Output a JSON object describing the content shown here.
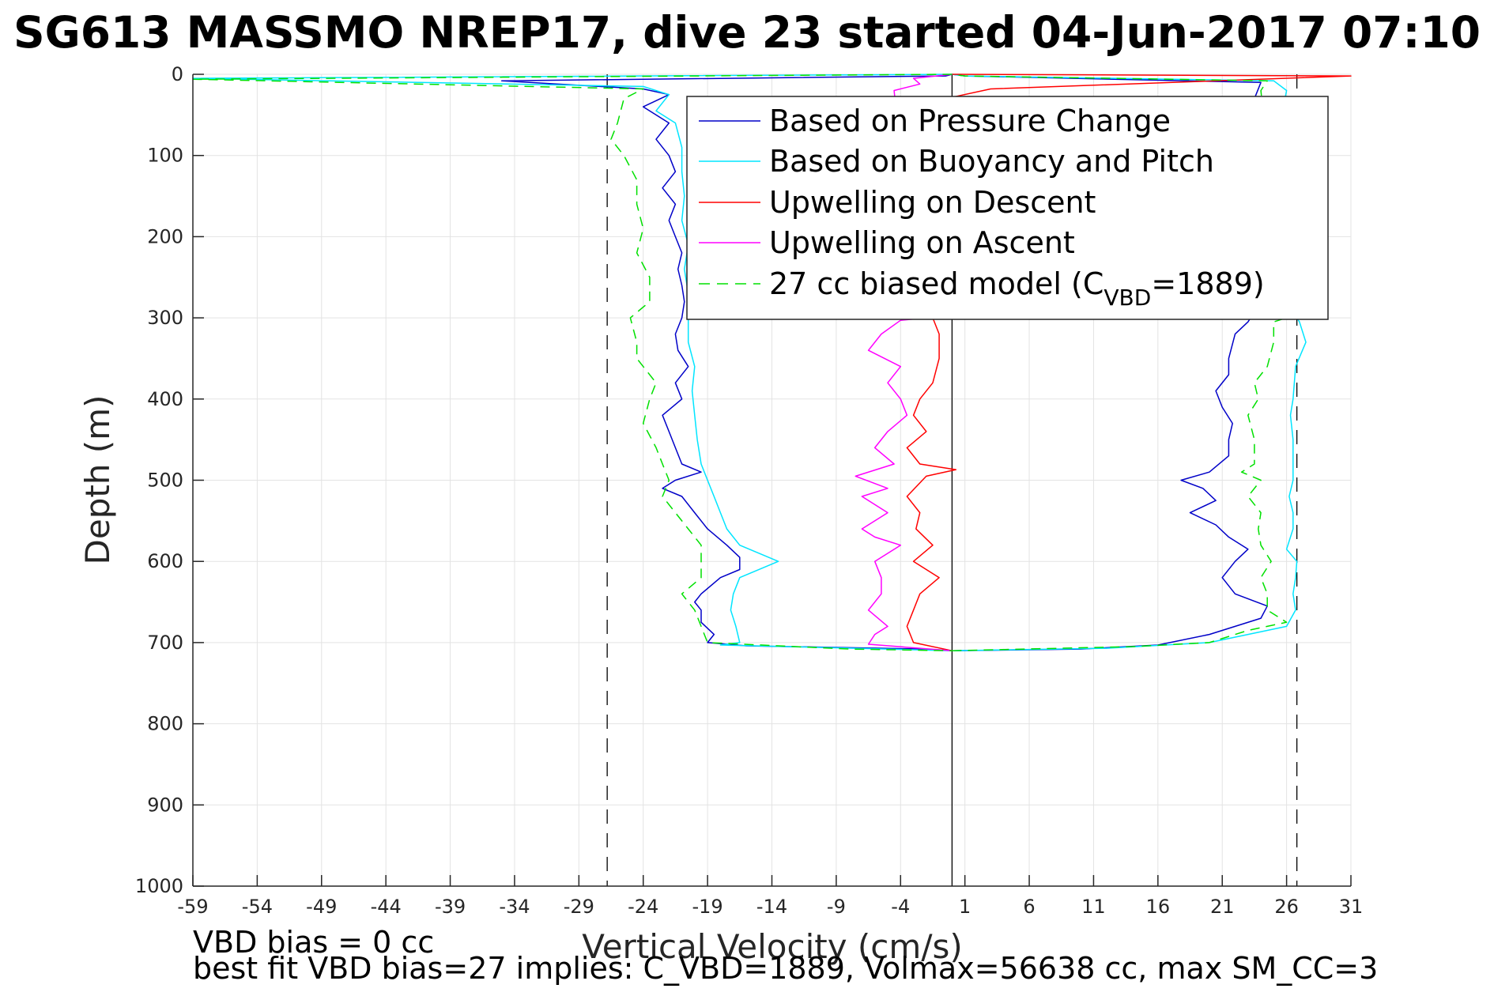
{
  "chart_data": {
    "type": "line",
    "title": "SG613 MASSMO NREP17, dive 23 started 04-Jun-2017 07:10",
    "xlabel": "Vertical Velocity (cm/s)",
    "ylabel": "Depth (m)",
    "xlim": [
      -59,
      31
    ],
    "ylim": [
      0,
      1000
    ],
    "y_reversed": true,
    "grid": true,
    "xticks": [
      "-59",
      "-54",
      "-49",
      "-44",
      "-39",
      "-34",
      "-29",
      "-24",
      "-19",
      "-14",
      "-9",
      "-4",
      "1",
      "6",
      "11",
      "16",
      "21",
      "26",
      "31"
    ],
    "yticks": [
      "0",
      "100",
      "200",
      "300",
      "400",
      "500",
      "600",
      "700",
      "800",
      "900",
      "1000"
    ],
    "legend_position": "top-right",
    "legend": [
      {
        "text": "Based on Pressure Change",
        "color": "#0000c8",
        "dash": "solid"
      },
      {
        "text": "Based on Buoyancy and Pitch",
        "color": "#00e5ff",
        "dash": "solid"
      },
      {
        "text": "Upwelling on Descent",
        "color": "#ff0000",
        "dash": "solid"
      },
      {
        "text": "Upwelling on Ascent",
        "color": "#ff00ff",
        "dash": "solid"
      },
      {
        "text_prefix": "27 cc biased model (C",
        "text_sub": "VBD",
        "text_suffix": "=1889)",
        "color": "#00e000",
        "dash": "dashed"
      }
    ],
    "reference_lines": {
      "zero_velocity": 0,
      "dashed_bounds": [
        -26.8,
        26.8
      ]
    },
    "series": [
      {
        "name": "Based on Pressure Change",
        "color": "#0000c8",
        "descent": [
          [
            0,
            0
          ],
          [
            -0.5,
            2
          ],
          [
            -35,
            8
          ],
          [
            -24,
            18
          ],
          [
            -22,
            25
          ],
          [
            -24,
            40
          ],
          [
            -22,
            60
          ],
          [
            -23,
            80
          ],
          [
            -22,
            100
          ],
          [
            -21.5,
            120
          ],
          [
            -22.5,
            140
          ],
          [
            -21.5,
            160
          ],
          [
            -22,
            180
          ],
          [
            -21.5,
            200
          ],
          [
            -21,
            220
          ],
          [
            -21.3,
            240
          ],
          [
            -21,
            260
          ],
          [
            -20.8,
            280
          ],
          [
            -21,
            300
          ],
          [
            -21.5,
            320
          ],
          [
            -21.3,
            340
          ],
          [
            -20.5,
            360
          ],
          [
            -21.5,
            380
          ],
          [
            -21,
            400
          ],
          [
            -22.5,
            420
          ],
          [
            -22,
            440
          ],
          [
            -21.5,
            460
          ],
          [
            -21,
            480
          ],
          [
            -19.5,
            490
          ],
          [
            -21.5,
            500
          ],
          [
            -22.5,
            510
          ],
          [
            -21,
            520
          ],
          [
            -20,
            540
          ],
          [
            -19,
            560
          ],
          [
            -17.5,
            580
          ],
          [
            -16.5,
            595
          ],
          [
            -16.5,
            610
          ],
          [
            -18,
            620
          ],
          [
            -19.5,
            640
          ],
          [
            -20,
            650
          ],
          [
            -19.5,
            660
          ],
          [
            -19.5,
            675
          ],
          [
            -18.5,
            690
          ],
          [
            -19,
            700
          ],
          [
            -16,
            704
          ],
          [
            -2,
            708
          ],
          [
            0,
            710
          ]
        ],
        "ascent": [
          [
            0,
            710
          ],
          [
            10,
            708
          ],
          [
            16,
            703
          ],
          [
            20,
            690
          ],
          [
            24,
            670
          ],
          [
            24.5,
            655
          ],
          [
            22,
            640
          ],
          [
            21,
            620
          ],
          [
            22,
            600
          ],
          [
            23,
            585
          ],
          [
            21.5,
            570
          ],
          [
            20.5,
            555
          ],
          [
            18.5,
            540
          ],
          [
            20.5,
            525
          ],
          [
            19.5,
            510
          ],
          [
            17.8,
            500
          ],
          [
            20,
            490
          ],
          [
            21.5,
            470
          ],
          [
            21.5,
            450
          ],
          [
            21.8,
            430
          ],
          [
            21,
            410
          ],
          [
            20.5,
            390
          ],
          [
            21.5,
            370
          ],
          [
            21.5,
            350
          ],
          [
            22,
            320
          ],
          [
            23,
            305
          ],
          [
            24,
            280
          ],
          [
            24,
            250
          ],
          [
            24,
            220
          ],
          [
            24,
            150
          ],
          [
            24.5,
            60
          ],
          [
            23.5,
            30
          ],
          [
            24,
            10
          ],
          [
            1,
            2
          ],
          [
            0,
            0
          ]
        ]
      },
      {
        "name": "Based on Buoyancy and Pitch",
        "color": "#00e5ff",
        "descent": [
          [
            0,
            0
          ],
          [
            -59,
            5
          ],
          [
            -24,
            15
          ],
          [
            -22,
            25
          ],
          [
            -23,
            45
          ],
          [
            -21.5,
            60
          ],
          [
            -21,
            90
          ],
          [
            -21,
            120
          ],
          [
            -20.8,
            150
          ],
          [
            -21,
            180
          ],
          [
            -20.5,
            210
          ],
          [
            -20.8,
            240
          ],
          [
            -20.5,
            270
          ],
          [
            -20.5,
            300
          ],
          [
            -20.5,
            330
          ],
          [
            -20,
            360
          ],
          [
            -20.2,
            390
          ],
          [
            -20,
            420
          ],
          [
            -19.8,
            450
          ],
          [
            -19.5,
            480
          ],
          [
            -19,
            500
          ],
          [
            -18.5,
            520
          ],
          [
            -18,
            540
          ],
          [
            -17.5,
            560
          ],
          [
            -16.5,
            580
          ],
          [
            -13.5,
            600
          ],
          [
            -16.5,
            620
          ],
          [
            -17,
            640
          ],
          [
            -17.2,
            660
          ],
          [
            -16.8,
            680
          ],
          [
            -16.5,
            700
          ],
          [
            -18,
            703
          ],
          [
            -5,
            708
          ],
          [
            0,
            710
          ]
        ],
        "ascent": [
          [
            0,
            710
          ],
          [
            12,
            707
          ],
          [
            20,
            700
          ],
          [
            26,
            680
          ],
          [
            26.7,
            660
          ],
          [
            26.5,
            640
          ],
          [
            26.7,
            620
          ],
          [
            26.8,
            600
          ],
          [
            26,
            585
          ],
          [
            26.5,
            560
          ],
          [
            26.5,
            540
          ],
          [
            26.2,
            520
          ],
          [
            26.5,
            500
          ],
          [
            26.5,
            480
          ],
          [
            26.5,
            450
          ],
          [
            26.3,
            420
          ],
          [
            26.5,
            400
          ],
          [
            26.7,
            360
          ],
          [
            27.5,
            330
          ],
          [
            27,
            305
          ],
          [
            26,
            280
          ],
          [
            26,
            200
          ],
          [
            25.5,
            150
          ],
          [
            25.5,
            60
          ],
          [
            26,
            20
          ],
          [
            25,
            8
          ],
          [
            1,
            2
          ],
          [
            0,
            0
          ]
        ]
      },
      {
        "name": "Upwelling on Descent",
        "color": "#ff0000",
        "descent": [
          [
            0,
            0
          ],
          [
            31,
            2
          ],
          [
            3,
            18
          ],
          [
            -0.5,
            30
          ],
          [
            -1.5,
            300
          ],
          [
            -1,
            320
          ],
          [
            -1,
            350
          ],
          [
            -1.5,
            380
          ],
          [
            -2.5,
            400
          ],
          [
            -3,
            420
          ],
          [
            -2,
            440
          ],
          [
            -3.5,
            460
          ],
          [
            -2.5,
            480
          ],
          [
            0.3,
            487
          ],
          [
            -2,
            495
          ],
          [
            -3.5,
            520
          ],
          [
            -2.5,
            540
          ],
          [
            -2.8,
            560
          ],
          [
            -1.5,
            580
          ],
          [
            -3,
            600
          ],
          [
            -1,
            620
          ],
          [
            -2.5,
            640
          ],
          [
            -3,
            660
          ],
          [
            -3.5,
            680
          ],
          [
            -3,
            700
          ],
          [
            0,
            710
          ]
        ]
      },
      {
        "name": "Upwelling on Ascent",
        "color": "#ff00ff",
        "ascent": [
          [
            0,
            710
          ],
          [
            -6.5,
            702
          ],
          [
            -6,
            690
          ],
          [
            -5,
            680
          ],
          [
            -6.5,
            660
          ],
          [
            -5.5,
            640
          ],
          [
            -5.5,
            620
          ],
          [
            -6,
            600
          ],
          [
            -4,
            580
          ],
          [
            -6,
            570
          ],
          [
            -7,
            560
          ],
          [
            -5,
            540
          ],
          [
            -7,
            520
          ],
          [
            -5,
            510
          ],
          [
            -7.5,
            495
          ],
          [
            -4.5,
            480
          ],
          [
            -6,
            460
          ],
          [
            -5,
            440
          ],
          [
            -3.5,
            420
          ],
          [
            -4,
            400
          ],
          [
            -5,
            380
          ],
          [
            -4,
            360
          ],
          [
            -6.5,
            340
          ],
          [
            -5.5,
            320
          ],
          [
            -4,
            303
          ],
          [
            -2,
            300
          ],
          [
            -4,
            200
          ],
          [
            -4,
            100
          ],
          [
            -4.5,
            20
          ],
          [
            -2.5,
            12
          ],
          [
            -3,
            5
          ],
          [
            0,
            0
          ]
        ]
      },
      {
        "name": "27 cc biased model (CVBD=1889)",
        "color": "#00e000",
        "dash": "dashed",
        "descent": [
          [
            0,
            0
          ],
          [
            -59,
            6
          ],
          [
            -24,
            18
          ],
          [
            -25.5,
            30
          ],
          [
            -26,
            60
          ],
          [
            -26.5,
            80
          ],
          [
            -25.5,
            100
          ],
          [
            -24.5,
            130
          ],
          [
            -24.5,
            160
          ],
          [
            -24,
            190
          ],
          [
            -24.5,
            220
          ],
          [
            -23.5,
            250
          ],
          [
            -23.5,
            280
          ],
          [
            -25,
            300
          ],
          [
            -24.5,
            330
          ],
          [
            -24.5,
            350
          ],
          [
            -23,
            380
          ],
          [
            -23.5,
            400
          ],
          [
            -24,
            430
          ],
          [
            -23,
            460
          ],
          [
            -22.5,
            480
          ],
          [
            -22,
            500
          ],
          [
            -22.5,
            520
          ],
          [
            -21.5,
            540
          ],
          [
            -20.5,
            560
          ],
          [
            -19.5,
            580
          ],
          [
            -19.5,
            600
          ],
          [
            -19.5,
            620
          ],
          [
            -21,
            640
          ],
          [
            -20,
            660
          ],
          [
            -19.5,
            680
          ],
          [
            -19,
            700
          ],
          [
            -8,
            708
          ],
          [
            0,
            710
          ]
        ],
        "ascent": [
          [
            0,
            710
          ],
          [
            14,
            705
          ],
          [
            20,
            700
          ],
          [
            23,
            685
          ],
          [
            26,
            675
          ],
          [
            24.5,
            660
          ],
          [
            24.5,
            640
          ],
          [
            24,
            620
          ],
          [
            24.8,
            600
          ],
          [
            24,
            580
          ],
          [
            23.8,
            560
          ],
          [
            24,
            540
          ],
          [
            23,
            520
          ],
          [
            24,
            500
          ],
          [
            22.5,
            490
          ],
          [
            23.5,
            480
          ],
          [
            23.5,
            450
          ],
          [
            23,
            420
          ],
          [
            23.8,
            400
          ],
          [
            23.5,
            380
          ],
          [
            24.5,
            360
          ],
          [
            25,
            330
          ],
          [
            25,
            305
          ],
          [
            26,
            300
          ],
          [
            24.5,
            200
          ],
          [
            24.5,
            100
          ],
          [
            24,
            20
          ],
          [
            24.5,
            8
          ],
          [
            1,
            2
          ],
          [
            0,
            0
          ]
        ]
      }
    ]
  },
  "notes": {
    "vbd_bias": "VBD bias = 0 cc",
    "best_fit": "best fit VBD bias=27 implies: C_VBD=1889, Volmax=56638 cc, max SM_CC=3"
  }
}
